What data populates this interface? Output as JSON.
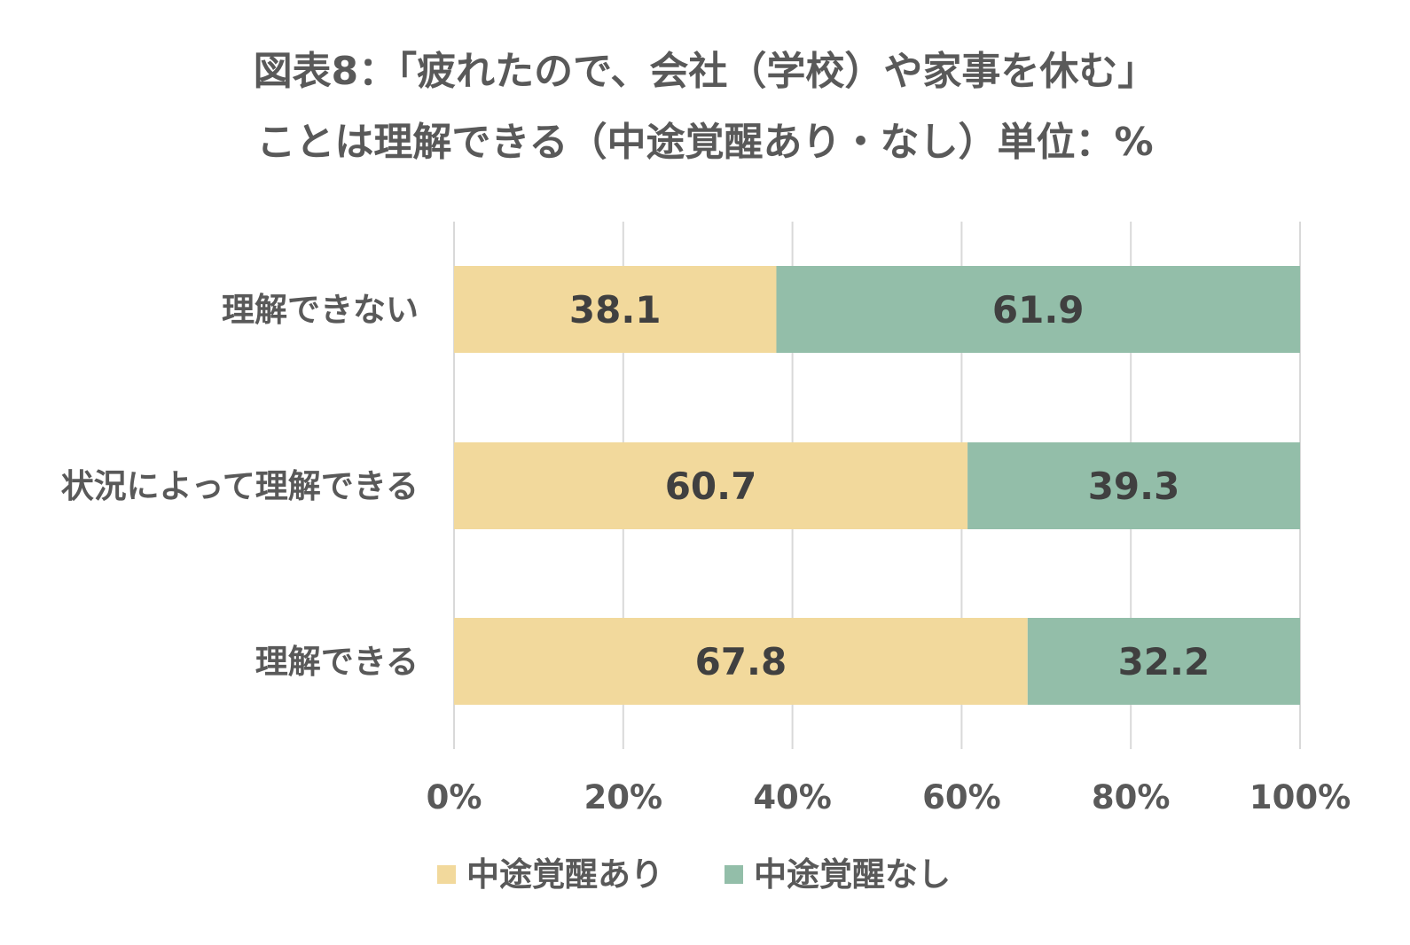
{
  "chart_data": {
    "type": "bar",
    "orientation": "horizontal",
    "stacked": true,
    "percent_stacked": true,
    "title_lines": [
      "図表8：「疲れたので、会社（学校）や家事を休む」",
      "ことは理解できる（中途覚醒あり・なし）単位：%"
    ],
    "categories": [
      "理解できない",
      "状況によって理解できる",
      "理解できる"
    ],
    "series": [
      {
        "name": "中途覚醒あり",
        "color": "#f2d99c",
        "values": [
          38.1,
          60.7,
          67.8
        ]
      },
      {
        "name": "中途覚醒なし",
        "color": "#93bea9",
        "values": [
          61.9,
          39.3,
          32.2
        ]
      }
    ],
    "xlim": [
      0,
      100
    ],
    "x_ticks": [
      "0%",
      "20%",
      "40%",
      "60%",
      "80%",
      "100%"
    ],
    "grid": true,
    "legend_position": "bottom"
  }
}
